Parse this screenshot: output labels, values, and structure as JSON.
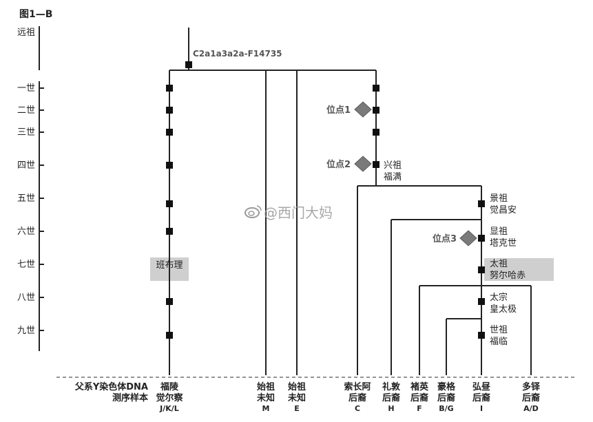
{
  "figure_title": "图1—B",
  "root_haplogroup": "C2a1a3a2a-F14735",
  "generations": [
    "远祖",
    "一世",
    "二世",
    "三世",
    "四世",
    "五世",
    "六世",
    "七世",
    "八世",
    "九世"
  ],
  "sites": [
    "位点1",
    "位点2",
    "位点3"
  ],
  "ancestors": [
    {
      "line1": "兴祖",
      "line2": "福满"
    },
    {
      "line1": "景祖",
      "line2": "觉昌安"
    },
    {
      "line1": "显祖",
      "line2": "塔克世"
    },
    {
      "line1": "太祖",
      "line2": "努尔哈赤"
    },
    {
      "line1": "太宗",
      "line2": "皇太极"
    },
    {
      "line1": "世祖",
      "line2": "福临"
    }
  ],
  "highlight_label": "班布理",
  "footer_label": {
    "line1": "父系Y染色体DNA",
    "line2": "测序样本"
  },
  "samples": [
    {
      "line1": "福陵",
      "line2": "觉尔察",
      "code": "J/K/L"
    },
    {
      "line1": "始祖",
      "line2": "未知",
      "code": "M"
    },
    {
      "line1": "始祖",
      "line2": "未知",
      "code": "E"
    },
    {
      "line1": "索长阿",
      "line2": "后裔",
      "code": "C"
    },
    {
      "line1": "礼敦",
      "line2": "后裔",
      "code": "H"
    },
    {
      "line1": "褚英",
      "line2": "后裔",
      "code": "F"
    },
    {
      "line1": "豪格",
      "line2": "后裔",
      "code": "B/G"
    },
    {
      "line1": "弘昼",
      "line2": "后裔",
      "code": "I"
    },
    {
      "line1": "多铎",
      "line2": "后裔",
      "code": "A/D"
    }
  ],
  "watermark": "@西门大妈",
  "colors": {
    "line": "#222222",
    "node": "#111111",
    "diamond": "#7a7a7a",
    "highlight": "#cfcfcf"
  }
}
